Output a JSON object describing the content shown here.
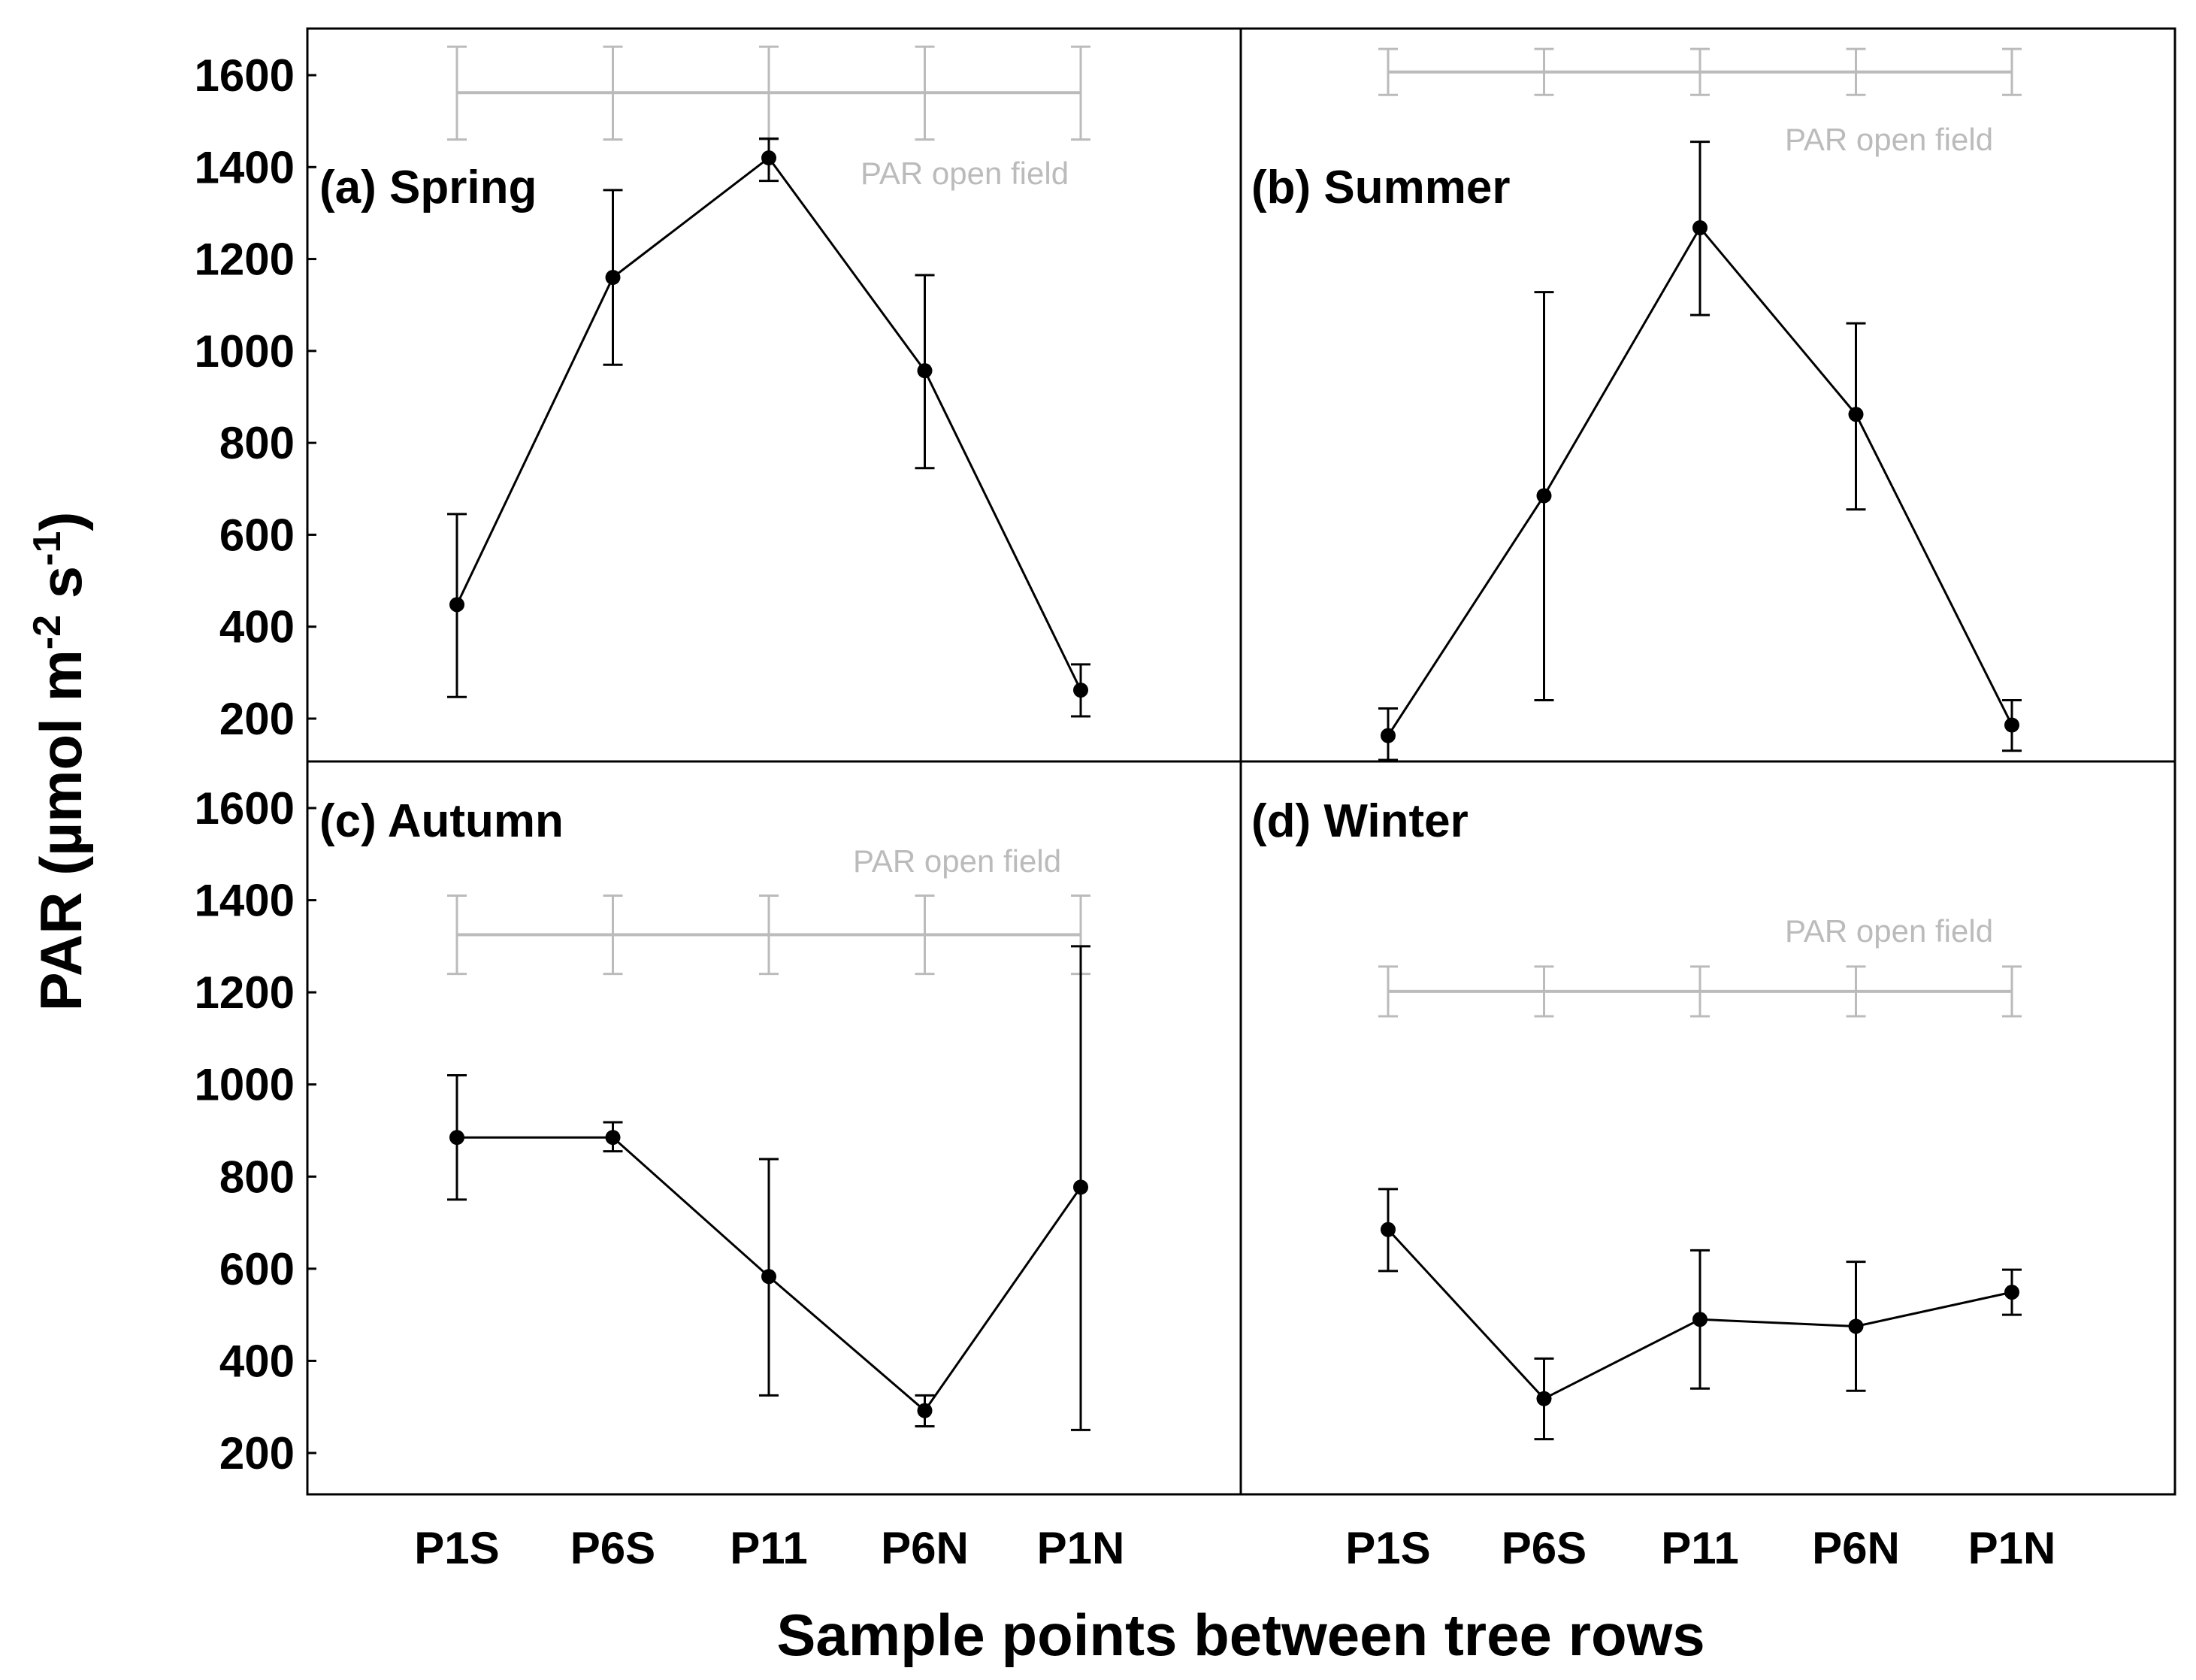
{
  "colors": {
    "series": "#000000",
    "reference": "#bbbbbb",
    "frame": "#000000"
  },
  "axes": {
    "xlabel": "Sample points between tree rows",
    "ylabel_main": "PAR (µmol m",
    "ylabel_sup1": "-2",
    "ylabel_mid": " s",
    "ylabel_sup2": "-1",
    "ylabel_end": ")"
  },
  "chart_data": {
    "type": "line",
    "xlabel": "Sample points between tree rows",
    "ylabel": "PAR (µmol m-2 s-1)",
    "categories": [
      "P1S",
      "P6S",
      "P11",
      "P6N",
      "P1N"
    ],
    "ylim": [
      100,
      1700
    ],
    "yticks": [
      200,
      400,
      600,
      800,
      1000,
      1200,
      1400,
      1600
    ],
    "panels": [
      {
        "id": "spring",
        "title": "(a) Spring",
        "reference_label": "PAR open field",
        "reference": {
          "value": 1562,
          "lower": 1460,
          "upper": 1662
        },
        "values": [
          448,
          1160,
          1420,
          957,
          262
        ],
        "lower": [
          247,
          970,
          1370,
          745,
          205
        ],
        "upper": [
          645,
          1350,
          1462,
          1165,
          318
        ]
      },
      {
        "id": "summer",
        "title": "(b) Summer",
        "reference_label": "PAR open field",
        "reference": {
          "value": 1607,
          "lower": 1557,
          "upper": 1657
        },
        "values": [
          163,
          685,
          1268,
          862,
          186
        ],
        "lower": [
          100,
          240,
          1078,
          655,
          130
        ],
        "upper": [
          222,
          1128,
          1455,
          1060,
          240
        ]
      },
      {
        "id": "autumn",
        "title": "(c) Autumn",
        "reference_label": "PAR open field",
        "reference": {
          "value": 1325,
          "lower": 1240,
          "upper": 1410
        },
        "values": [
          885,
          885,
          583,
          292,
          777
        ],
        "lower": [
          750,
          855,
          325,
          258,
          250
        ],
        "upper": [
          1020,
          918,
          838,
          325,
          1300
        ]
      },
      {
        "id": "winter",
        "title": "(d) Winter",
        "reference_label": "PAR open field",
        "reference": {
          "value": 1202,
          "lower": 1148,
          "upper": 1256
        },
        "values": [
          685,
          318,
          490,
          475,
          549
        ],
        "lower": [
          595,
          230,
          340,
          335,
          500
        ],
        "upper": [
          773,
          405,
          640,
          615,
          598
        ]
      }
    ]
  }
}
